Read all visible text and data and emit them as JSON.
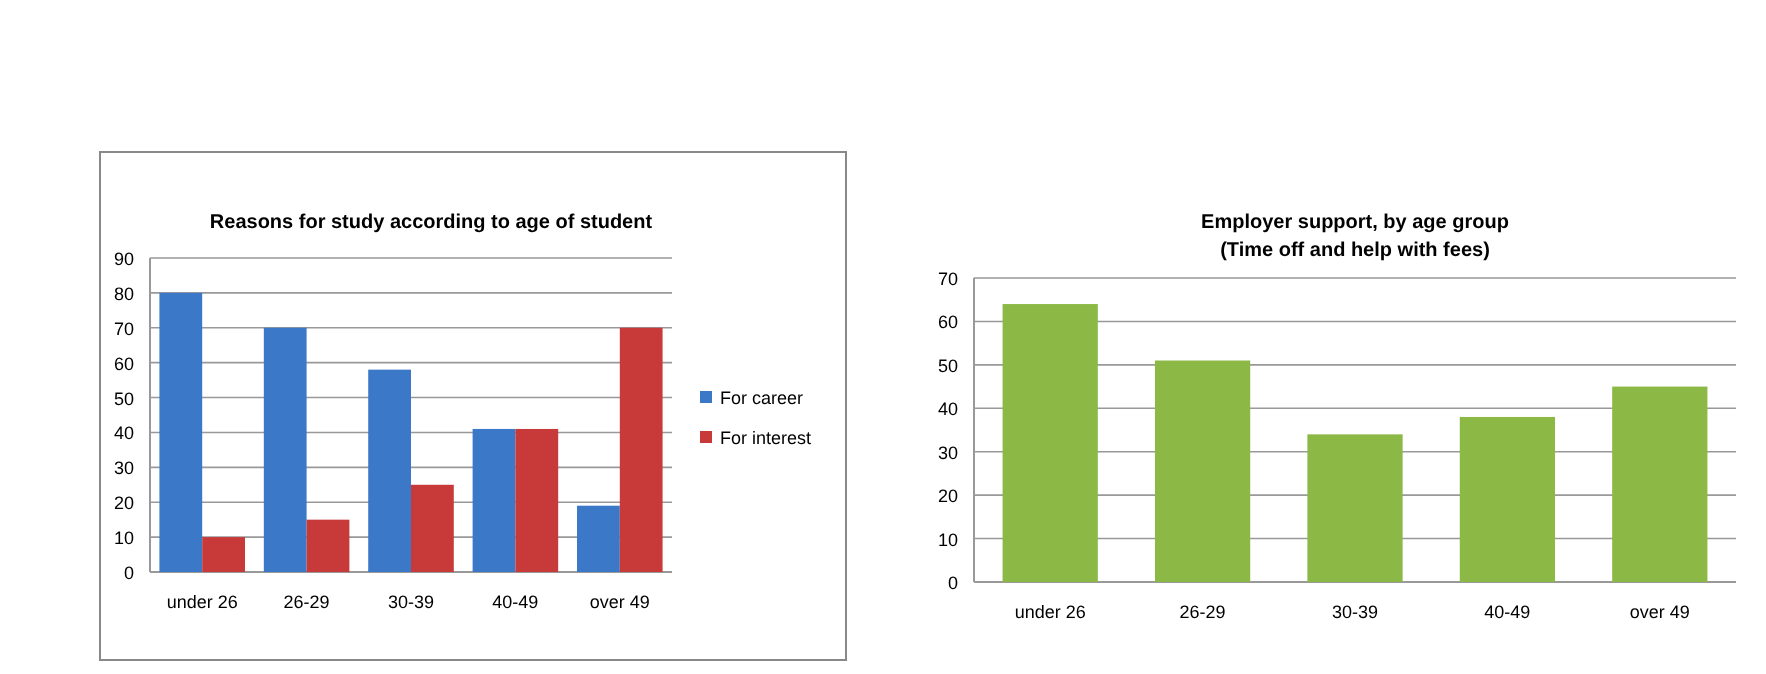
{
  "chart_data": [
    {
      "type": "bar",
      "title": "Reasons  for study according to age of student",
      "categories": [
        "under 26",
        "26-29",
        "30-39",
        "40-49",
        "over 49"
      ],
      "series": [
        {
          "name": "For career",
          "color": "#3b78c8",
          "values": [
            80,
            70,
            58,
            41,
            19
          ]
        },
        {
          "name": "For interest",
          "color": "#c83a3a",
          "values": [
            10,
            15,
            25,
            41,
            70
          ]
        }
      ],
      "ylim": [
        0,
        90
      ],
      "yticks": [
        0,
        10,
        20,
        30,
        40,
        50,
        60,
        70,
        80,
        90
      ],
      "grid": "y",
      "legend": "right"
    },
    {
      "type": "bar",
      "title": "Employer support, by age group\n(Time off and help with fees)",
      "categories": [
        "under 26",
        "26-29",
        "30-39",
        "40-49",
        "over 49"
      ],
      "series": [
        {
          "color": "#8cb845",
          "values": [
            64,
            51,
            34,
            38,
            45
          ]
        }
      ],
      "ylim": [
        0,
        70
      ],
      "yticks": [
        0,
        10,
        20,
        30,
        40,
        50,
        60,
        70
      ],
      "grid": "y"
    }
  ]
}
